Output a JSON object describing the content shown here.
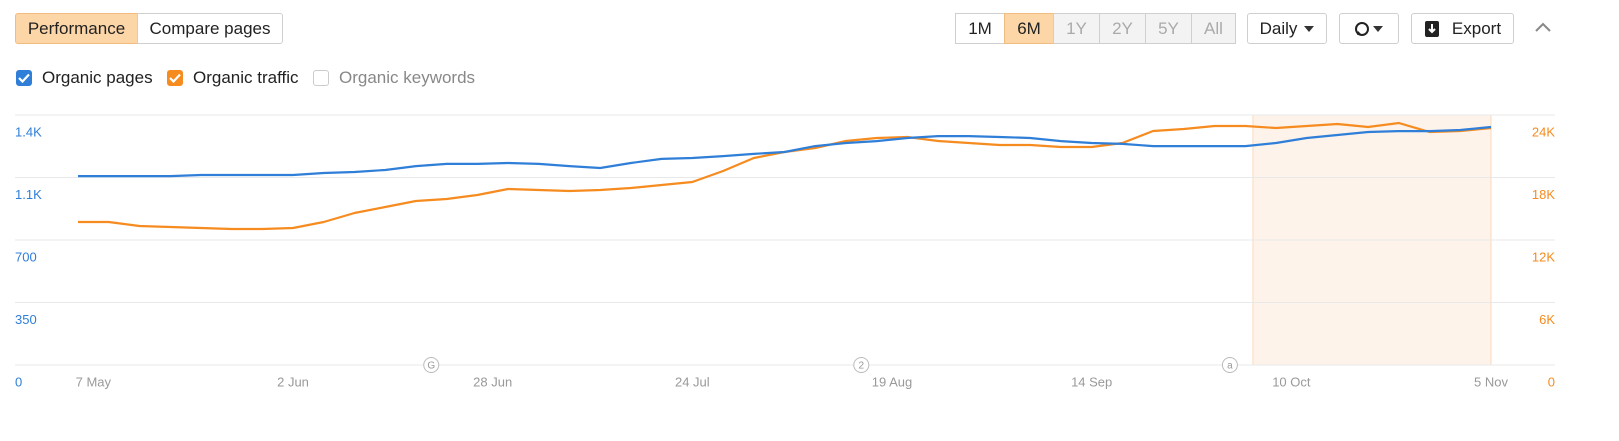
{
  "ui": {
    "tabs": [
      {
        "label": "Performance",
        "active": true
      },
      {
        "label": "Compare pages",
        "active": false
      }
    ],
    "ranges": [
      {
        "label": "1M",
        "state": "normal"
      },
      {
        "label": "6M",
        "state": "active"
      },
      {
        "label": "1Y",
        "state": "disabled"
      },
      {
        "label": "2Y",
        "state": "disabled"
      },
      {
        "label": "5Y",
        "state": "disabled"
      },
      {
        "label": "All",
        "state": "disabled"
      }
    ],
    "interval": "Daily",
    "export": "Export"
  },
  "chart_data": {
    "type": "line",
    "x": [
      "5 May",
      "9 May",
      "13 May",
      "17 May",
      "21 May",
      "25 May",
      "29 May",
      "2 Jun",
      "6 Jun",
      "10 Jun",
      "14 Jun",
      "18 Jun",
      "22 Jun",
      "26 Jun",
      "30 Jun",
      "4 Jul",
      "8 Jul",
      "12 Jul",
      "16 Jul",
      "20 Jul",
      "24 Jul",
      "28 Jul",
      "1 Aug",
      "5 Aug",
      "9 Aug",
      "13 Aug",
      "17 Aug",
      "21 Aug",
      "25 Aug",
      "29 Aug",
      "2 Sep",
      "6 Sep",
      "10 Sep",
      "14 Sep",
      "18 Sep",
      "22 Sep",
      "26 Sep",
      "30 Sep",
      "4 Oct",
      "8 Oct",
      "12 Oct",
      "16 Oct",
      "20 Oct",
      "24 Oct",
      "28 Oct",
      "1 Nov",
      "5 Nov"
    ],
    "series": [
      {
        "name": "Organic pages",
        "color": "#2f7ed8",
        "checked": true,
        "axis": "y",
        "values": [
          1058,
          1058,
          1058,
          1058,
          1064,
          1064,
          1064,
          1064,
          1075,
          1081,
          1092,
          1114,
          1126,
          1126,
          1131,
          1126,
          1114,
          1103,
          1131,
          1154,
          1159,
          1170,
          1182,
          1193,
          1226,
          1243,
          1254,
          1271,
          1282,
          1282,
          1277,
          1271,
          1254,
          1243,
          1238,
          1226,
          1226,
          1226,
          1226,
          1243,
          1271,
          1288,
          1305,
          1310,
          1310,
          1316,
          1333
        ]
      },
      {
        "name": "Organic traffic",
        "color": "#f68b1f",
        "checked": true,
        "axis": "y2",
        "values": [
          13728,
          13728,
          13344,
          13248,
          13152,
          13056,
          13056,
          13152,
          13728,
          14592,
          15168,
          15744,
          15936,
          16320,
          16896,
          16800,
          16704,
          16800,
          16992,
          17280,
          17568,
          18624,
          19872,
          20448,
          20832,
          21504,
          21792,
          21888,
          21504,
          21312,
          21120,
          21120,
          20928,
          20928,
          21312,
          22464,
          22656,
          22944,
          22944,
          22752,
          22944,
          23136,
          22848,
          23232,
          22368,
          22464,
          22752
        ]
      }
    ],
    "legend_unchecked": [
      "Organic keywords"
    ],
    "xlim": [
      "5 May",
      "5 Nov"
    ],
    "xticks": [
      "7 May",
      "2 Jun",
      "28 Jun",
      "24 Jul",
      "19 Aug",
      "14 Sep",
      "10 Oct",
      "5 Nov"
    ],
    "ylim": [
      0,
      1400
    ],
    "yticks": [
      0,
      350,
      700,
      {
        "value": 1050,
        "label": "1.1K"
      },
      {
        "value": 1400,
        "label": "1.4K"
      }
    ],
    "y2lim": [
      0,
      24000
    ],
    "y2ticks": [
      0,
      {
        "value": 6000,
        "label": "6K"
      },
      {
        "value": 12000,
        "label": "12K"
      },
      {
        "value": 18000,
        "label": "18K"
      },
      {
        "value": 24000,
        "label": "24K"
      }
    ],
    "grid": true,
    "shaded_range": [
      "5 Oct",
      "5 Nov"
    ],
    "annotations": [
      {
        "x": "20 Jun",
        "label": "G"
      },
      {
        "x": "15 Aug",
        "label": "2"
      },
      {
        "x": "2 Oct",
        "label": "a"
      }
    ]
  }
}
